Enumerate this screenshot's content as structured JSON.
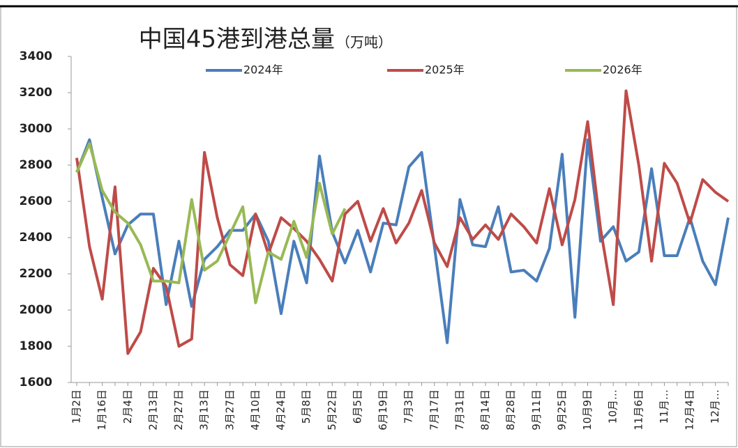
{
  "chart_data": {
    "type": "line",
    "title": "中国45港到港总量",
    "title_unit": "（万吨）",
    "categories": [
      "1月2日",
      null,
      "1月16日",
      null,
      "2月4日",
      null,
      "2月13日",
      null,
      "2月27日",
      null,
      "3月13日",
      null,
      "3月27日",
      null,
      "4月10日",
      null,
      "4月24日",
      null,
      "5月8日",
      null,
      "5月22日",
      null,
      "6月5日",
      null,
      "6月19日",
      null,
      "7月3日",
      null,
      "7月17日",
      null,
      "7月31日",
      null,
      "8月14日",
      null,
      "8月28日",
      null,
      "9月11日",
      null,
      "9月25日",
      null,
      "10月9日",
      null,
      "10月…",
      null,
      "11月6日",
      null,
      "11月…",
      null,
      "12月4日",
      null,
      "12月…",
      null
    ],
    "series": [
      {
        "name": "2024年",
        "color": "#4a7ebb",
        "values": [
          2760,
          2940,
          2620,
          2310,
          2470,
          2530,
          2530,
          2030,
          2380,
          2020,
          2280,
          2350,
          2440,
          2440,
          2530,
          2380,
          1980,
          2380,
          2150,
          2850,
          2430,
          2260,
          2440,
          2210,
          2480,
          2470,
          2790,
          2870,
          2350,
          1820,
          2610,
          2360,
          2350,
          2570,
          2210,
          2220,
          2160,
          2340,
          2860,
          1960,
          2940,
          2380,
          2460,
          2270,
          2320,
          2780,
          2300,
          2300,
          2510,
          2270,
          2140,
          2510
        ]
      },
      {
        "name": "2025年",
        "color": "#be4b48",
        "values": [
          2840,
          2350,
          2060,
          2680,
          1760,
          1880,
          2230,
          2130,
          1800,
          1840,
          2870,
          2510,
          2250,
          2190,
          2530,
          2310,
          2510,
          2450,
          2380,
          2280,
          2160,
          2530,
          2600,
          2380,
          2560,
          2370,
          2480,
          2660,
          2370,
          2240,
          2510,
          2390,
          2470,
          2390,
          2530,
          2460,
          2370,
          2670,
          2360,
          2610,
          3040,
          2450,
          2030,
          3210,
          2800,
          2270,
          2810,
          2700,
          2480,
          2720,
          2650,
          2600
        ]
      },
      {
        "name": "2026年",
        "color": "#98b954",
        "values": [
          2760,
          2920,
          2660,
          2540,
          2480,
          2360,
          2160,
          2160,
          2150,
          2610,
          2220,
          2270,
          2420,
          2570,
          2040,
          2320,
          2280,
          2490,
          2290,
          2700,
          2420,
          2560,
          null,
          null,
          null,
          null,
          null,
          null,
          null,
          null,
          null,
          null,
          null,
          null,
          null,
          null,
          null,
          null,
          null,
          null,
          null,
          null,
          null,
          null,
          null,
          null,
          null,
          null,
          null,
          null,
          null,
          null
        ]
      }
    ],
    "ylim": [
      1600,
      3400
    ],
    "yticks": [
      1600,
      1800,
      2000,
      2200,
      2400,
      2600,
      2800,
      3000,
      3200,
      3400
    ],
    "grid": false,
    "legend": "top"
  }
}
